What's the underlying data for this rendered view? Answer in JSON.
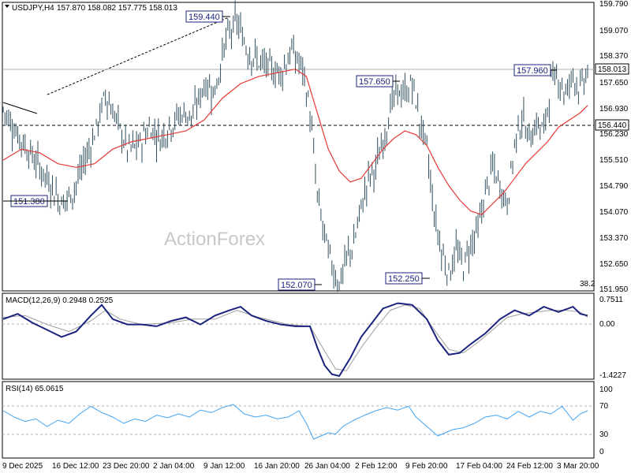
{
  "header": {
    "symbol": "USDJPY,H4",
    "ohlc": "157.870 158.082 157.775 158.013",
    "macd_label": "MACD(12,26,9) 0.2948 0.2525",
    "rsi_label": "RSI(14) 65.0615"
  },
  "watermark": "ActionForex",
  "colors": {
    "bars": "#2f4f5f",
    "ma": "#e53935",
    "macd": "#1a237e",
    "signal": "#9e9e9e",
    "rsi": "#42a5f5",
    "box_border": "#1a237e"
  },
  "chart_data": [
    {
      "type": "ohlc",
      "name": "price",
      "y_ticks": [
        "159.790",
        "159.070",
        "158.370",
        "157.650",
        "156.930",
        "156.230",
        "155.510",
        "154.790",
        "154.070",
        "153.370",
        "152.650",
        "151.950"
      ],
      "ylim": [
        151.95,
        159.79
      ],
      "x_ticks": [
        "9 Dec 2025",
        "16 Dec 12:00",
        "23 Dec 20:00",
        "2 Jan 04:00",
        "9 Jan 12:00",
        "16 Jan 20:00",
        "26 Jan 04:00",
        "2 Feb 12:00",
        "9 Feb 20:00",
        "17 Feb 04:00",
        "24 Feb 12:00",
        "3 Mar 20:00"
      ],
      "current_price": "158.013",
      "levels": [
        {
          "label": "156.440",
          "value": 156.44,
          "style": "dashed"
        },
        {
          "label": "158.013",
          "value": 158.013,
          "style": "solid"
        }
      ],
      "annotations": [
        {
          "label": "159.440",
          "value": 159.44
        },
        {
          "label": "157.650",
          "value": 157.65
        },
        {
          "label": "157.960",
          "value": 157.96
        },
        {
          "label": "151.380",
          "value": 151.38
        },
        {
          "label": "152.070",
          "value": 152.07
        },
        {
          "label": "152.250",
          "value": 152.25
        }
      ],
      "fib_label": "38.2",
      "close_path": [
        [
          0,
          156.9
        ],
        [
          4,
          156.2
        ],
        [
          8,
          155.6
        ],
        [
          12,
          155.0
        ],
        [
          16,
          154.3
        ],
        [
          19,
          154.6
        ],
        [
          22,
          155.4
        ],
        [
          25,
          156.2
        ],
        [
          28,
          157.3
        ],
        [
          31,
          156.6
        ],
        [
          34,
          155.8
        ],
        [
          37,
          155.9
        ],
        [
          40,
          156.4
        ],
        [
          43,
          156.1
        ],
        [
          46,
          156.5
        ],
        [
          49,
          156.8
        ],
        [
          52,
          156.7
        ],
        [
          55,
          157.6
        ],
        [
          58,
          157.4
        ],
        [
          61,
          158.8
        ],
        [
          64,
          159.3
        ],
        [
          67,
          158.5
        ],
        [
          70,
          158.2
        ],
        [
          73,
          158.0
        ],
        [
          76,
          157.9
        ],
        [
          79,
          158.5
        ],
        [
          82,
          158.0
        ],
        [
          84,
          156.8
        ],
        [
          86,
          154.5
        ],
        [
          88,
          153.4
        ],
        [
          90,
          152.6
        ],
        [
          92,
          152.1
        ],
        [
          94,
          152.8
        ],
        [
          96,
          153.2
        ],
        [
          98,
          154.2
        ],
        [
          100,
          155.0
        ],
        [
          102,
          155.3
        ],
        [
          104,
          156.0
        ],
        [
          106,
          156.9
        ],
        [
          108,
          157.4
        ],
        [
          110,
          157.3
        ],
        [
          112,
          157.6
        ],
        [
          114,
          156.6
        ],
        [
          116,
          155.8
        ],
        [
          118,
          154.0
        ],
        [
          120,
          153.0
        ],
        [
          122,
          152.4
        ],
        [
          124,
          153.0
        ],
        [
          126,
          152.6
        ],
        [
          128,
          153.2
        ],
        [
          130,
          153.6
        ],
        [
          132,
          154.6
        ],
        [
          134,
          155.3
        ],
        [
          136,
          154.8
        ],
        [
          138,
          154.3
        ],
        [
          140,
          155.9
        ],
        [
          142,
          156.7
        ],
        [
          144,
          156.1
        ],
        [
          146,
          156.5
        ],
        [
          148,
          156.3
        ],
        [
          150,
          157.6
        ],
        [
          152,
          157.8
        ],
        [
          154,
          157.3
        ],
        [
          156,
          157.9
        ],
        [
          158,
          157.4
        ],
        [
          160,
          158.0
        ]
      ],
      "ma_path": [
        [
          0,
          155.5
        ],
        [
          5,
          155.8
        ],
        [
          10,
          155.7
        ],
        [
          15,
          155.4
        ],
        [
          20,
          155.3
        ],
        [
          25,
          155.4
        ],
        [
          30,
          155.8
        ],
        [
          35,
          156.0
        ],
        [
          40,
          156.1
        ],
        [
          45,
          156.2
        ],
        [
          50,
          156.3
        ],
        [
          55,
          156.6
        ],
        [
          60,
          157.2
        ],
        [
          65,
          157.6
        ],
        [
          70,
          157.8
        ],
        [
          75,
          157.9
        ],
        [
          80,
          158.0
        ],
        [
          83,
          157.8
        ],
        [
          86,
          156.8
        ],
        [
          89,
          155.8
        ],
        [
          92,
          155.2
        ],
        [
          95,
          154.9
        ],
        [
          98,
          155.0
        ],
        [
          101,
          155.4
        ],
        [
          104,
          155.8
        ],
        [
          107,
          156.1
        ],
        [
          110,
          156.3
        ],
        [
          113,
          156.2
        ],
        [
          116,
          155.9
        ],
        [
          119,
          155.3
        ],
        [
          122,
          154.8
        ],
        [
          125,
          154.4
        ],
        [
          128,
          154.1
        ],
        [
          131,
          154.0
        ],
        [
          134,
          154.3
        ],
        [
          137,
          154.6
        ],
        [
          140,
          155.0
        ],
        [
          143,
          155.4
        ],
        [
          146,
          155.7
        ],
        [
          149,
          156.0
        ],
        [
          152,
          156.4
        ],
        [
          155,
          156.6
        ],
        [
          158,
          156.8
        ],
        [
          160,
          157.0
        ]
      ]
    },
    {
      "type": "line",
      "name": "MACD(12,26,9)",
      "y_ticks": [
        "0.7511",
        "0.00",
        "-1.4227"
      ],
      "ylim": [
        -1.4227,
        0.7511
      ],
      "series": [
        {
          "name": "MACD",
          "values": [
            [
              0,
              0.2
            ],
            [
              4,
              0.35
            ],
            [
              8,
              0.1
            ],
            [
              12,
              -0.1
            ],
            [
              16,
              -0.3
            ],
            [
              20,
              -0.15
            ],
            [
              24,
              0.3
            ],
            [
              27,
              0.6
            ],
            [
              30,
              0.2
            ],
            [
              34,
              0.05
            ],
            [
              38,
              0.05
            ],
            [
              42,
              0.0
            ],
            [
              46,
              0.15
            ],
            [
              50,
              0.25
            ],
            [
              54,
              0.05
            ],
            [
              58,
              0.3
            ],
            [
              62,
              0.45
            ],
            [
              65,
              0.55
            ],
            [
              68,
              0.3
            ],
            [
              72,
              0.15
            ],
            [
              76,
              0.05
            ],
            [
              80,
              0.0
            ],
            [
              84,
              0.0
            ],
            [
              86,
              -0.6
            ],
            [
              88,
              -1.1
            ],
            [
              90,
              -1.35
            ],
            [
              92,
              -1.4
            ],
            [
              95,
              -0.9
            ],
            [
              98,
              -0.3
            ],
            [
              101,
              0.1
            ],
            [
              104,
              0.5
            ],
            [
              108,
              0.65
            ],
            [
              112,
              0.6
            ],
            [
              116,
              0.2
            ],
            [
              119,
              -0.4
            ],
            [
              122,
              -0.8
            ],
            [
              125,
              -0.75
            ],
            [
              128,
              -0.5
            ],
            [
              132,
              -0.2
            ],
            [
              136,
              0.2
            ],
            [
              140,
              0.45
            ],
            [
              144,
              0.3
            ],
            [
              148,
              0.55
            ],
            [
              152,
              0.4
            ],
            [
              156,
              0.55
            ],
            [
              158,
              0.35
            ],
            [
              160,
              0.3
            ]
          ]
        },
        {
          "name": "Signal",
          "values": [
            [
              0,
              0.25
            ],
            [
              6,
              0.3
            ],
            [
              12,
              0.05
            ],
            [
              18,
              -0.15
            ],
            [
              24,
              0.15
            ],
            [
              28,
              0.45
            ],
            [
              32,
              0.2
            ],
            [
              38,
              0.05
            ],
            [
              46,
              0.1
            ],
            [
              52,
              0.2
            ],
            [
              58,
              0.2
            ],
            [
              64,
              0.45
            ],
            [
              70,
              0.25
            ],
            [
              78,
              0.05
            ],
            [
              84,
              0.0
            ],
            [
              88,
              -0.7
            ],
            [
              91,
              -1.2
            ],
            [
              94,
              -1.25
            ],
            [
              98,
              -0.6
            ],
            [
              102,
              -0.05
            ],
            [
              106,
              0.45
            ],
            [
              110,
              0.6
            ],
            [
              114,
              0.5
            ],
            [
              118,
              -0.1
            ],
            [
              122,
              -0.65
            ],
            [
              126,
              -0.75
            ],
            [
              130,
              -0.45
            ],
            [
              134,
              -0.1
            ],
            [
              138,
              0.25
            ],
            [
              142,
              0.35
            ],
            [
              146,
              0.4
            ],
            [
              150,
              0.45
            ],
            [
              154,
              0.45
            ],
            [
              158,
              0.4
            ],
            [
              160,
              0.25
            ]
          ]
        }
      ]
    },
    {
      "type": "line",
      "name": "RSI(14)",
      "y_ticks": [
        "100",
        "70",
        "30",
        "0"
      ],
      "ylim": [
        0,
        100
      ],
      "levels": [
        70,
        30
      ],
      "series": [
        {
          "name": "RSI",
          "values": [
            [
              0,
              65
            ],
            [
              3,
              55
            ],
            [
              6,
              48
            ],
            [
              9,
              52
            ],
            [
              12,
              40
            ],
            [
              15,
              50
            ],
            [
              18,
              45
            ],
            [
              21,
              60
            ],
            [
              24,
              72
            ],
            [
              27,
              62
            ],
            [
              30,
              55
            ],
            [
              33,
              45
            ],
            [
              36,
              52
            ],
            [
              39,
              48
            ],
            [
              42,
              58
            ],
            [
              45,
              54
            ],
            [
              48,
              60
            ],
            [
              51,
              55
            ],
            [
              54,
              66
            ],
            [
              57,
              62
            ],
            [
              60,
              70
            ],
            [
              63,
              75
            ],
            [
              66,
              60
            ],
            [
              69,
              55
            ],
            [
              72,
              58
            ],
            [
              75,
              52
            ],
            [
              78,
              55
            ],
            [
              81,
              65
            ],
            [
              83,
              45
            ],
            [
              85,
              20
            ],
            [
              87,
              25
            ],
            [
              89,
              30
            ],
            [
              91,
              28
            ],
            [
              93,
              40
            ],
            [
              96,
              50
            ],
            [
              99,
              58
            ],
            [
              102,
              65
            ],
            [
              105,
              70
            ],
            [
              108,
              66
            ],
            [
              111,
              72
            ],
            [
              113,
              55
            ],
            [
              115,
              45
            ],
            [
              117,
              35
            ],
            [
              119,
              25
            ],
            [
              121,
              30
            ],
            [
              123,
              35
            ],
            [
              126,
              38
            ],
            [
              129,
              45
            ],
            [
              132,
              55
            ],
            [
              135,
              58
            ],
            [
              138,
              52
            ],
            [
              141,
              64
            ],
            [
              144,
              55
            ],
            [
              147,
              64
            ],
            [
              150,
              60
            ],
            [
              153,
              72
            ],
            [
              156,
              50
            ],
            [
              158,
              60
            ],
            [
              160,
              65
            ]
          ]
        }
      ]
    }
  ]
}
